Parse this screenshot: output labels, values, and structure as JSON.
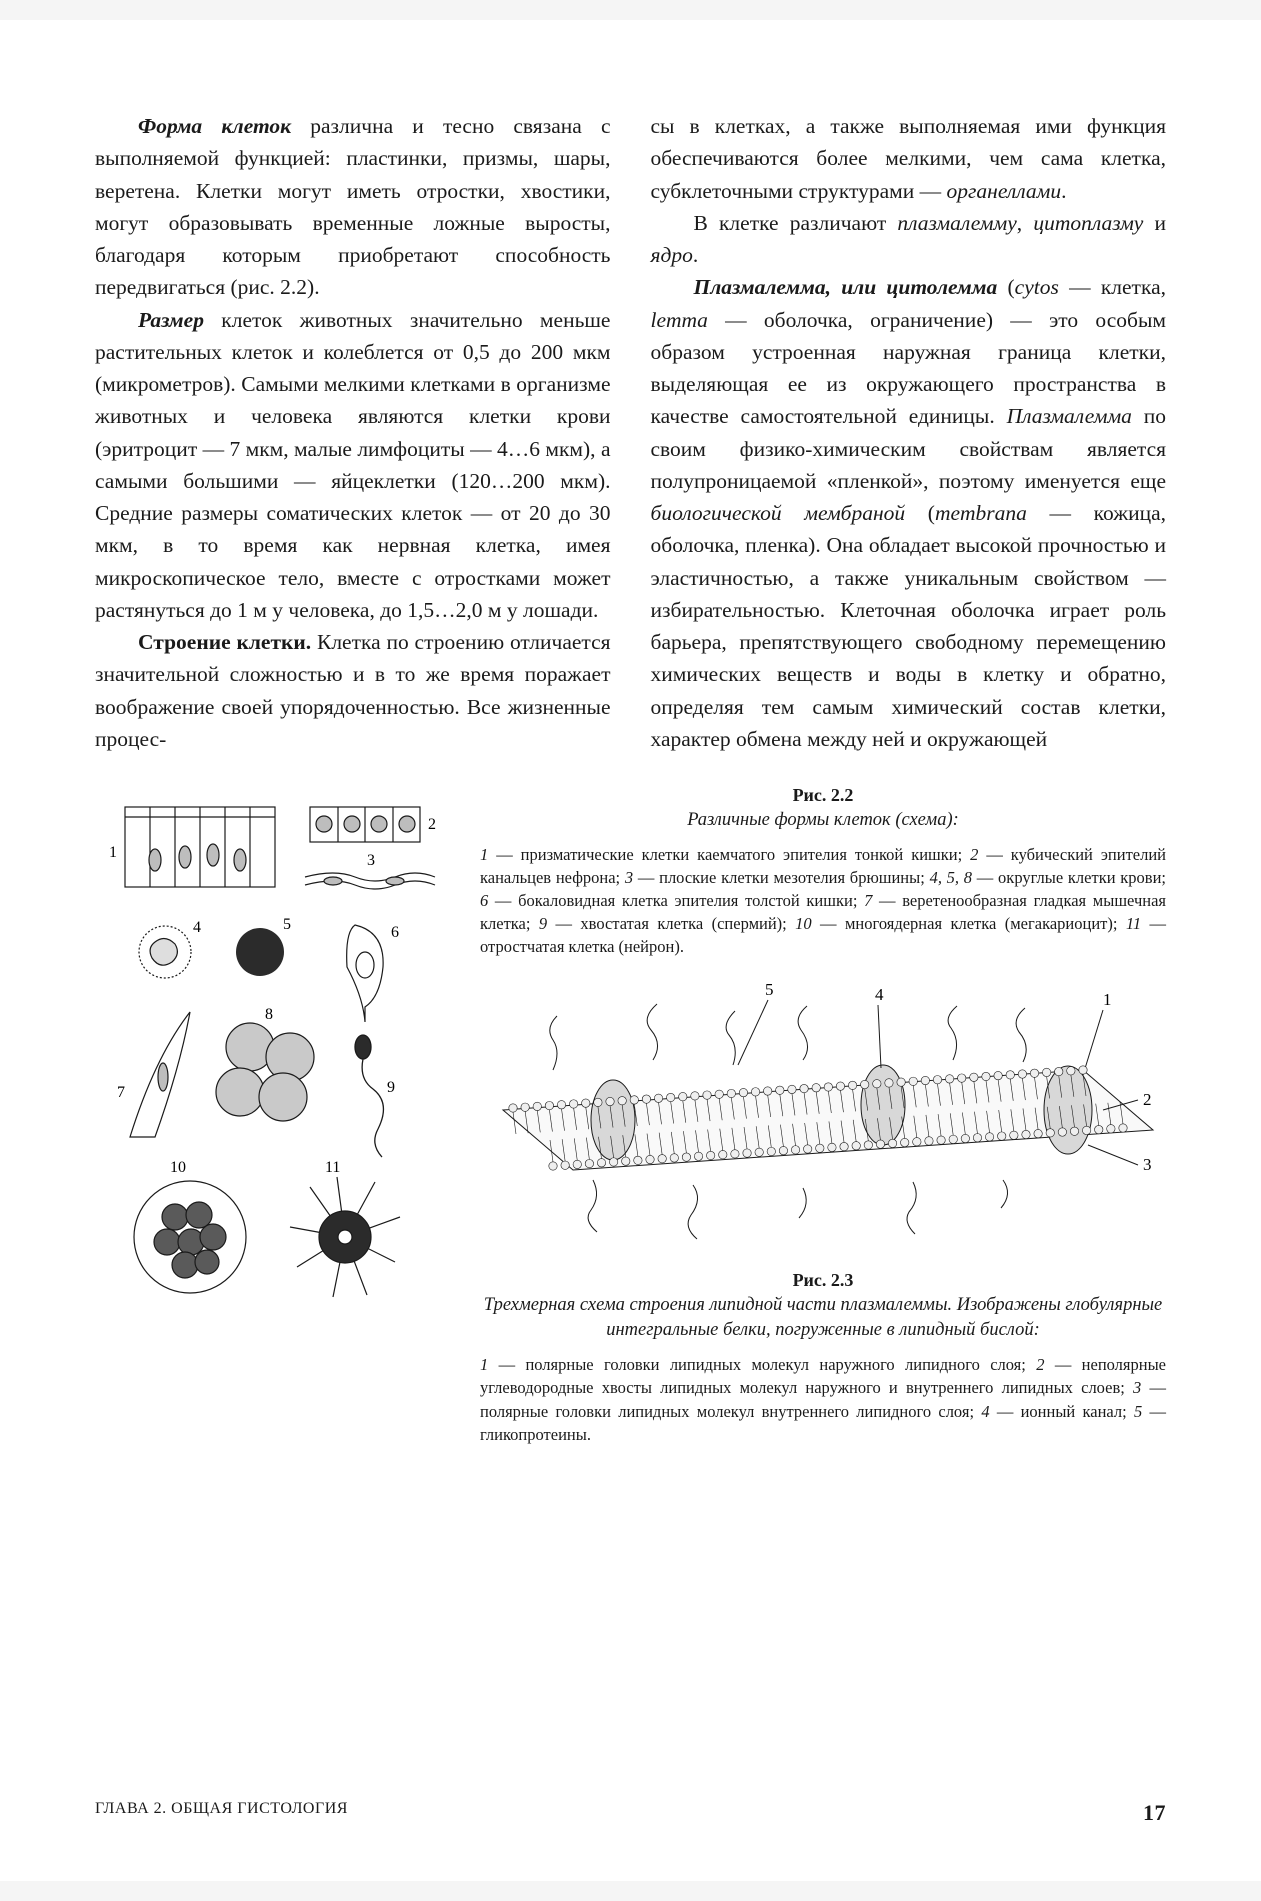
{
  "column_left": {
    "p1_italic": "Форма клеток ",
    "p1_rest": "различна и тесно связана с выполняемой функцией: пластинки, призмы, шары, веретена. Клетки могут иметь отростки, хвостики, могут образовывать временные ложные выросты, благодаря которым приобретают способность передвигаться (рис. 2.2).",
    "p2_italic": "Размер ",
    "p2_rest": "клеток животных значительно меньше растительных клеток и колеблется от 0,5 до 200 мкм (микрометров). Самыми мелкими клетками в организме животных и человека являются клетки крови (эритроцит — 7 мкм, малые лимфоциты — 4…6 мкм), а самыми большими — яйцеклетки (120…200 мкм). Средние размеры соматических клеток — от 20 до 30 мкм, в то время как нервная клетка, имея микроскопическое тело, вместе с отростками может растянуться до 1 м у человека, до 1,5…2,0 м у лошади.",
    "p3_bold": "Строение клетки.",
    "p3_rest": " Клетка по строению отличается значительной сложностью и в то же время поражает воображение своей упорядоченностью. Все жизненные процес-"
  },
  "column_right": {
    "p1": "сы в клетках, а также выполняемая ими функция обеспечиваются более мелкими, чем сама клетка, субклеточными структурами — ",
    "p1_italic": "органеллами",
    "p1_end": ".",
    "p2_a": "В клетке различают ",
    "p2_i1": "плазмалемму",
    "p2_b": ", ",
    "p2_i2": "цитоплазму",
    "p2_c": " и ",
    "p2_i3": "ядро",
    "p2_d": ".",
    "p3_bi": "Плазмалемма, или цитолемма",
    "p3_a": " (",
    "p3_i1": "cytos",
    "p3_b": " — клетка, ",
    "p3_i2": "lemma",
    "p3_c": " — оболочка, ограничение) — это особым образом устроенная наружная граница клетки, выделяющая ее из окружающего пространства в качестве самостоятельной единицы. ",
    "p3_i3": "Плазмалемма",
    "p3_d": " по своим физико-химическим свойствам является полупроницаемой «пленкой», поэтому именуется еще ",
    "p3_i4": "биологической мембраной",
    "p3_e": " (",
    "p3_i5": "membrana",
    "p3_f": " — кожица, оболочка, пленка). Она обладает высокой прочностью и эластичностью, а также уникальным свойством — избирательностью. Клеточная оболочка играет роль барьера, препятствующего свободному перемещению химических веществ и воды в клетку и обратно, определяя тем самым химический состав клетки, характер обмена между ней и окружающей"
  },
  "fig22": {
    "label": "Рис. 2.2",
    "title": "Различные формы клеток (схема):",
    "caption_parts": [
      {
        "n": "1",
        "t": " — призматические клетки каемчатого эпителия тонкой кишки; "
      },
      {
        "n": "2",
        "t": " — кубический эпителий канальцев нефрона; "
      },
      {
        "n": "3",
        "t": " — плоские клетки мезотелия брюшины; "
      },
      {
        "n": "4, 5, 8",
        "t": " — округлые клетки крови; "
      },
      {
        "n": "6",
        "t": " — бокаловидная клетка эпителия толстой кишки; "
      },
      {
        "n": "7",
        "t": " — веретенообразная гладкая мышечная клетка; "
      },
      {
        "n": "9",
        "t": " — хвостатая клетка (спермий); "
      },
      {
        "n": "10",
        "t": " — многоядерная клетка (мегакариоцит); "
      },
      {
        "n": "11",
        "t": " — отростчатая клетка (нейрон)."
      }
    ],
    "cell_labels": [
      "1",
      "2",
      "3",
      "4",
      "5",
      "6",
      "7",
      "8",
      "9",
      "10",
      "11"
    ],
    "stroke": "#1a1a1a",
    "fill_light": "#ffffff",
    "fill_mid": "#9a9a9a",
    "fill_dark": "#2b2b2b"
  },
  "fig23": {
    "label": "Рис. 2.3",
    "title": "Трехмерная схема строения липидной части плазмалеммы. Изображены глобулярные интегральные белки, погруженные в липидный бислой:",
    "caption_parts": [
      {
        "n": "1",
        "t": " — полярные головки липидных молекул наружного липидного слоя; "
      },
      {
        "n": "2",
        "t": " — неполярные углеводородные хвосты липидных молекул наружного и внутреннего липидных слоев; "
      },
      {
        "n": "3",
        "t": " — полярные головки липидных молекул внутреннего липидного слоя; "
      },
      {
        "n": "4",
        "t": " — ионный канал; "
      },
      {
        "n": "5",
        "t": " — гликопротеины."
      }
    ],
    "label_digits": [
      "1",
      "2",
      "3",
      "4",
      "5"
    ],
    "stroke": "#1a1a1a",
    "head_fill": "#efefef"
  },
  "footer": {
    "left": "ГЛАВА 2. ОБЩАЯ ГИСТОЛОГИЯ",
    "page": "17"
  }
}
